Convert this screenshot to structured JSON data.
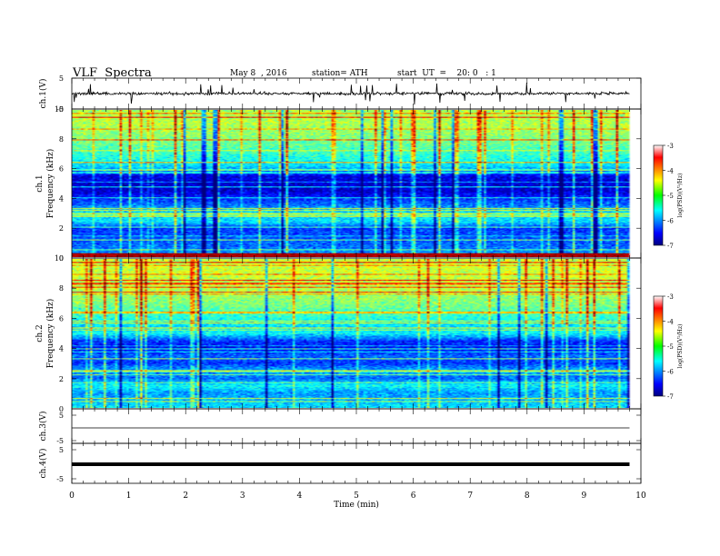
{
  "header": {
    "title": "VLF  Spectra",
    "date": "May 8  , 2016",
    "station": "station= ATH",
    "start": "start  UT  =    20: 0   : 1"
  },
  "chart_data": [
    {
      "type": "line",
      "ylabel": "ch.1(V)",
      "ylim": [
        -5,
        5
      ],
      "yticks": [
        "5",
        "-5"
      ],
      "xlim": [
        0,
        10
      ],
      "series": [
        {
          "color": "#000000",
          "description_values": "noisy trace around 0 V with spikes up to about +3 V and down to about -4 V, 0 to 9.8 min"
        }
      ]
    },
    {
      "type": "heatmap",
      "ylabel": "Frequency  (kHz)",
      "ylabel2": "ch.1",
      "ylim": [
        0,
        10
      ],
      "yticks": [
        "0",
        "2",
        "4",
        "6",
        "8",
        "10"
      ],
      "xlim": [
        0,
        10
      ],
      "data_end_min": 9.8,
      "colorbar": {
        "label": "log(PSD)(V²/Hz)",
        "range": [
          -7,
          -3
        ],
        "ticks": [
          "-3",
          "-4",
          "-5",
          "-6",
          "-7"
        ]
      },
      "profile_logpsd": [
        [
          0,
          -4.7
        ],
        [
          0.2,
          -5.9
        ],
        [
          0.5,
          -6.0
        ],
        [
          0.8,
          -6.1
        ],
        [
          1.5,
          -6.2
        ],
        [
          2.0,
          -6.3
        ],
        [
          2.4,
          -5.6
        ],
        [
          3.0,
          -5.6
        ],
        [
          3.6,
          -6.1
        ],
        [
          4.5,
          -6.7
        ],
        [
          5.5,
          -6.6
        ],
        [
          6.2,
          -5.6
        ],
        [
          7.0,
          -5.3
        ],
        [
          8.0,
          -5.0
        ],
        [
          9.0,
          -4.8
        ],
        [
          10,
          -4.8
        ]
      ]
    },
    {
      "type": "heatmap",
      "ylabel": "Frequency  (kHz)",
      "ylabel2": "ch.2",
      "ylim": [
        0,
        10
      ],
      "yticks": [
        "0",
        "2",
        "4",
        "6",
        "8",
        "10"
      ],
      "xlim": [
        0,
        10
      ],
      "data_end_min": 9.8,
      "colorbar": {
        "label": "log(PSD)(V²/Hz)",
        "range": [
          -7,
          -3
        ],
        "ticks": [
          "-3",
          "-4",
          "-5",
          "-6",
          "-7"
        ]
      },
      "profile_logpsd": [
        [
          0,
          -5.6
        ],
        [
          0.3,
          -5.7
        ],
        [
          1.0,
          -5.9
        ],
        [
          1.5,
          -5.5
        ],
        [
          2.0,
          -6.1
        ],
        [
          2.5,
          -5.8
        ],
        [
          3.0,
          -6.3
        ],
        [
          3.5,
          -6.1
        ],
        [
          4.0,
          -6.5
        ],
        [
          4.5,
          -6.3
        ],
        [
          5.0,
          -5.5
        ],
        [
          5.5,
          -5.6
        ],
        [
          6.2,
          -5.3
        ],
        [
          7.0,
          -5.0
        ],
        [
          8.0,
          -4.8
        ],
        [
          9.0,
          -4.7
        ],
        [
          10,
          -4.7
        ]
      ]
    },
    {
      "type": "line",
      "ylabel": "ch.3(V)",
      "ylim": [
        -5,
        5
      ],
      "yticks": [
        "5",
        "-5"
      ],
      "xlim": [
        0,
        10
      ],
      "series": [
        {
          "color": "#000000",
          "description_values": "flat trace near 0 V"
        }
      ]
    },
    {
      "type": "line",
      "ylabel": "ch.4(V)",
      "ylim": [
        -5,
        5
      ],
      "yticks": [
        "5",
        "-5"
      ],
      "xlim": [
        0,
        10
      ],
      "series": [
        {
          "color": "#000000",
          "description_values": "thick flat trace near 0 V"
        }
      ]
    }
  ],
  "xaxis": {
    "label": "Time  (min)",
    "ticks": [
      "0",
      "1",
      "2",
      "3",
      "4",
      "5",
      "6",
      "7",
      "8",
      "9",
      "10"
    ],
    "range": [
      0,
      10
    ]
  }
}
